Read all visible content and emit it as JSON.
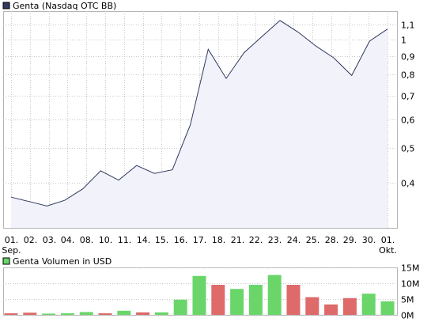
{
  "chart_data": [
    {
      "type": "line",
      "title": "Genta (Nasdaq OTC BB)",
      "y_scale": "log",
      "ylim": [
        0.3,
        1.2
      ],
      "y_ticks": [
        {
          "value": 1.1,
          "label": "1,1"
        },
        {
          "value": 1.0,
          "label": "1"
        },
        {
          "value": 0.9,
          "label": "0,9"
        },
        {
          "value": 0.8,
          "label": "0,8"
        },
        {
          "value": 0.7,
          "label": "0,7"
        },
        {
          "value": 0.6,
          "label": "0,6"
        },
        {
          "value": 0.5,
          "label": "0,5"
        },
        {
          "value": 0.4,
          "label": "0,4"
        }
      ],
      "categories": [
        "01.",
        "02.",
        "03.",
        "04.",
        "08.",
        "10.",
        "11.",
        "14.",
        "15.",
        "16.",
        "17.",
        "18.",
        "21.",
        "22.",
        "23.",
        "24.",
        "25.",
        "28.",
        "29.",
        "30.",
        "01."
      ],
      "category_sublabels": {
        "0": "Sep.",
        "20": "Okt."
      },
      "points": [
        {
          "x": "01. Sep.",
          "y": 0.365
        },
        {
          "x": "01. Sep.",
          "y": 0.355
        },
        {
          "x": "02.",
          "y": 0.345
        },
        {
          "x": "03.",
          "y": 0.358
        },
        {
          "x": "04.",
          "y": 0.385
        },
        {
          "x": "08.",
          "y": 0.432
        },
        {
          "x": "10.",
          "y": 0.407
        },
        {
          "x": "11.",
          "y": 0.447
        },
        {
          "x": "14.",
          "y": 0.425
        },
        {
          "x": "15.",
          "y": 0.435
        },
        {
          "x": "16.",
          "y": 0.58
        },
        {
          "x": "17.",
          "y": 0.94
        },
        {
          "x": "18.",
          "y": 0.78
        },
        {
          "x": "21.",
          "y": 0.92
        },
        {
          "x": "22.",
          "y": 1.02
        },
        {
          "x": "23.",
          "y": 1.13
        },
        {
          "x": "24.",
          "y": 1.05
        },
        {
          "x": "25.",
          "y": 0.96
        },
        {
          "x": "28.",
          "y": 0.89
        },
        {
          "x": "29.",
          "y": 0.795
        },
        {
          "x": "30.",
          "y": 0.99
        },
        {
          "x": "01. Okt.",
          "y": 1.07
        }
      ],
      "colors": {
        "line": "#2f3a5f",
        "fill": "#f1f2fa",
        "legend_swatch": "#2f3a5f"
      }
    },
    {
      "type": "bar",
      "title": "Genta Volumen in USD",
      "ylim": [
        0,
        15
      ],
      "y_ticks": [
        {
          "value": 15,
          "label": "15M"
        },
        {
          "value": 10,
          "label": "10M"
        },
        {
          "value": 5,
          "label": "5M"
        },
        {
          "value": 0,
          "label": "0M"
        }
      ],
      "categories": [
        "01.",
        "02.",
        "03.",
        "04.",
        "08.",
        "10.",
        "11.",
        "14.",
        "15.",
        "16.",
        "17.",
        "18.",
        "21.",
        "22.",
        "23.",
        "24.",
        "25.",
        "28.",
        "29.",
        "30.",
        "01."
      ],
      "values": [
        0.5,
        0.7,
        0.4,
        0.5,
        0.9,
        0.5,
        1.3,
        0.8,
        0.8,
        4.8,
        12.3,
        9.5,
        8.2,
        9.5,
        12.6,
        9.5,
        5.6,
        3.3,
        5.3,
        6.7,
        4.3
      ],
      "directions": [
        "down",
        "down",
        "up",
        "up",
        "up",
        "down",
        "up",
        "down",
        "up",
        "up",
        "up",
        "down",
        "up",
        "up",
        "up",
        "down",
        "down",
        "down",
        "down",
        "up",
        "up"
      ],
      "colors": {
        "up": "#6ad66a",
        "down": "#de6a6a",
        "legend_swatch": "#6ad66a"
      }
    }
  ]
}
